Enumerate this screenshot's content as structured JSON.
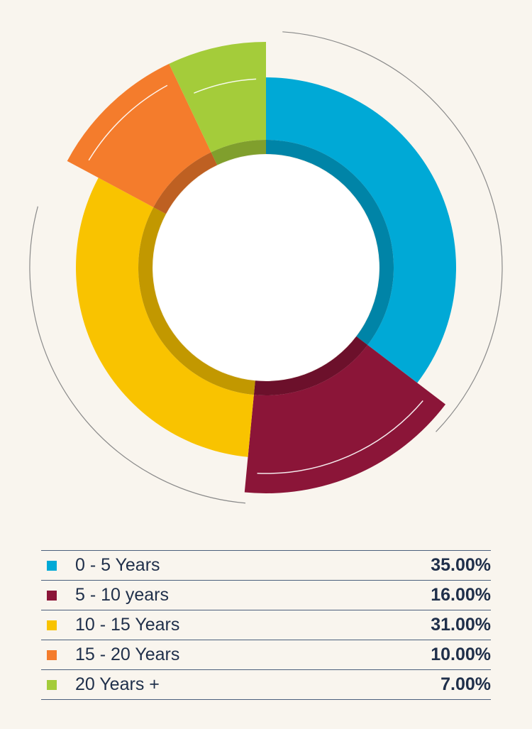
{
  "chart_data": {
    "type": "pie",
    "categories": [
      "0 - 5 Years",
      "5 - 10 years",
      "10 - 15 Years",
      "15 - 20 Years",
      "20 Years +"
    ],
    "values": [
      35.0,
      16.0,
      31.0,
      10.0,
      7.0
    ],
    "value_labels": [
      "35.00%",
      "16.00%",
      "31.00%",
      "10.00%",
      "7.00%"
    ],
    "colors": [
      "#00a9d6",
      "#8b1538",
      "#f9c300",
      "#f47c2c",
      "#a4cc3a"
    ],
    "style": "exploded-donut",
    "title": "",
    "xlabel": "",
    "ylabel": ""
  },
  "legend": {
    "rows": [
      {
        "label": "0 - 5 Years",
        "value": "35.00%",
        "color": "#00a9d6"
      },
      {
        "label": "5 - 10 years",
        "value": "16.00%",
        "color": "#8b1538"
      },
      {
        "label": "10 - 15 Years",
        "value": "31.00%",
        "color": "#f9c300"
      },
      {
        "label": "15 - 20 Years",
        "value": "10.00%",
        "color": "#f47c2c"
      },
      {
        "label": "20 Years +",
        "value": "7.00%",
        "color": "#a4cc3a"
      }
    ]
  }
}
